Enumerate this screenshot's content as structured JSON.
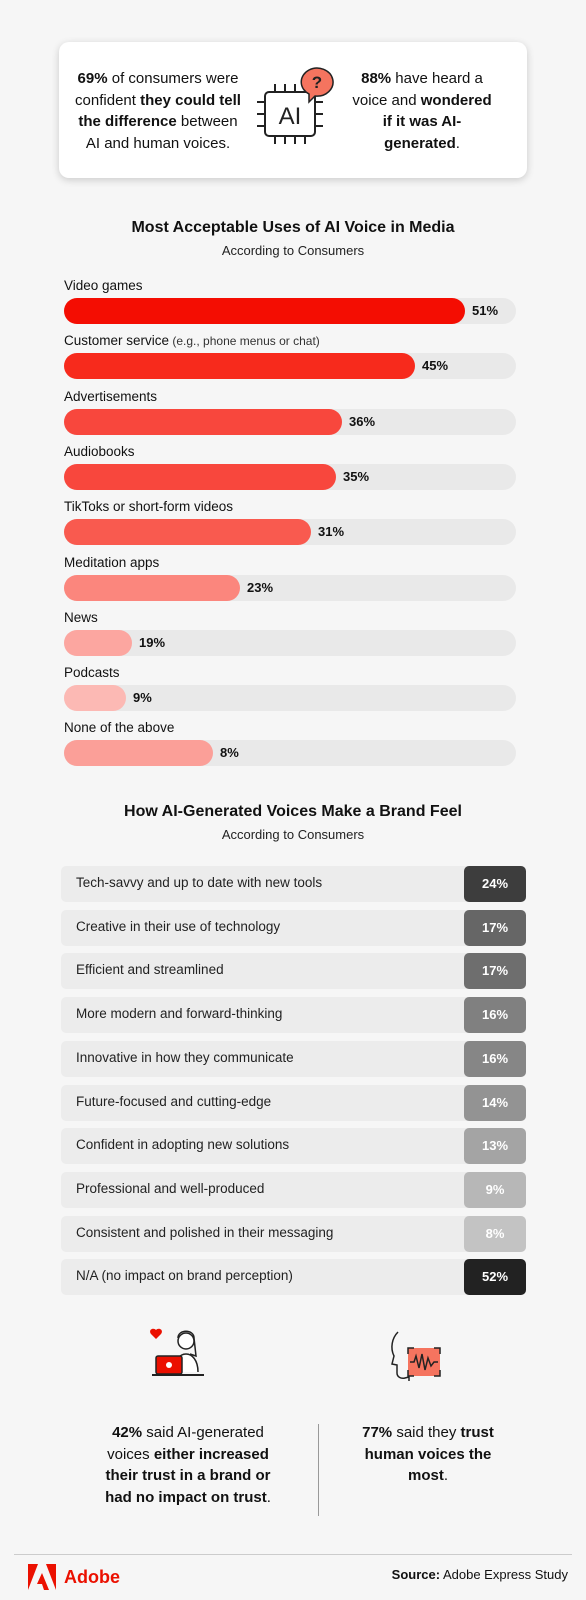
{
  "top_card": {
    "left": {
      "pct": "69%",
      "t1": " of consumers were confident ",
      "bold1": "they could tell the difference",
      "t2": " between AI and human voices."
    },
    "right": {
      "pct": "88%",
      "t1": " have heard a voice and ",
      "bold1": "wondered if it was AI-generated",
      "t2": "."
    },
    "icon_text": "AI",
    "bubble_text": "?"
  },
  "chart1": {
    "title": "Most Acceptable Uses of AI Voice in Media",
    "subtitle": "According to Consumers"
  },
  "chart2": {
    "title": "How AI-Generated Voices Make a Brand Feel",
    "subtitle": "According to Consumers"
  },
  "chart_data": [
    {
      "type": "bar",
      "orientation": "horizontal",
      "title": "Most Acceptable Uses of AI Voice in Media",
      "subtitle": "According to Consumers",
      "categories": [
        "Video games",
        "Customer service",
        "Advertisements",
        "Audiobooks",
        "TikToks or short-form videos",
        "Meditation apps",
        "News",
        "Podcasts",
        "None of the above"
      ],
      "category_notes": [
        "",
        "(e.g., phone menus or chat)",
        "",
        "",
        "",
        "",
        "",
        "",
        ""
      ],
      "values": [
        51,
        45,
        36,
        35,
        31,
        23,
        19,
        9,
        8
      ],
      "value_labels": [
        "51%",
        "45%",
        "36%",
        "35%",
        "31%",
        "23%",
        "19%",
        "9%",
        "8%"
      ],
      "fill_fractions": [
        0.888,
        0.777,
        0.615,
        0.602,
        0.546,
        0.39,
        0.15,
        0.138,
        0.33
      ],
      "colors": [
        "#f40d02",
        "#f72a1c",
        "#f8473d",
        "#f8473d",
        "#f95a4f",
        "#fb867d",
        "#fca6a0",
        "#fcb9b4",
        "#fb9f98"
      ],
      "track_color": "#e9e9e9",
      "ylim": [
        0,
        100
      ]
    },
    {
      "type": "table",
      "title": "How AI-Generated Voices Make a Brand Feel",
      "subtitle": "According to Consumers",
      "rows": [
        {
          "label": "Tech-savvy and up to date with new tools",
          "value": 24,
          "value_label": "24%",
          "color": "#3d3d3d"
        },
        {
          "label": "Creative in their use of technology",
          "value": 17,
          "value_label": "17%",
          "color": "#666666"
        },
        {
          "label": "Efficient and streamlined",
          "value": 17,
          "value_label": "17%",
          "color": "#6e6e6e"
        },
        {
          "label": "More modern and forward-thinking",
          "value": 16,
          "value_label": "16%",
          "color": "#808080"
        },
        {
          "label": "Innovative in how they communicate",
          "value": 16,
          "value_label": "16%",
          "color": "#868686"
        },
        {
          "label": "Future-focused and cutting-edge",
          "value": 14,
          "value_label": "14%",
          "color": "#939393"
        },
        {
          "label": "Confident in adopting new solutions",
          "value": 13,
          "value_label": "13%",
          "color": "#a4a4a4"
        },
        {
          "label": "Professional and well-produced",
          "value": 9,
          "value_label": "9%",
          "color": "#b7b7b7"
        },
        {
          "label": "Consistent and polished in their messaging",
          "value": 8,
          "value_label": "8%",
          "color": "#c3c3c3"
        },
        {
          "label": "N/A (no impact on brand perception)",
          "value": 52,
          "value_label": "52%",
          "color": "#222222"
        }
      ]
    }
  ],
  "bottom": {
    "left": {
      "pct": "42%",
      "t1": " said AI-generated voices ",
      "bold1": "either increased their trust in a brand or had no impact on trust",
      "t2": "."
    },
    "right": {
      "pct": "77%",
      "t1": " said they ",
      "bold1": "trust human voices the most",
      "t2": "."
    }
  },
  "footer": {
    "brand": "Adobe",
    "source_label": "Source:",
    "source_text": " Adobe Express Study"
  },
  "colors": {
    "accent": "#eb1000",
    "bg": "#f6f6f6"
  }
}
